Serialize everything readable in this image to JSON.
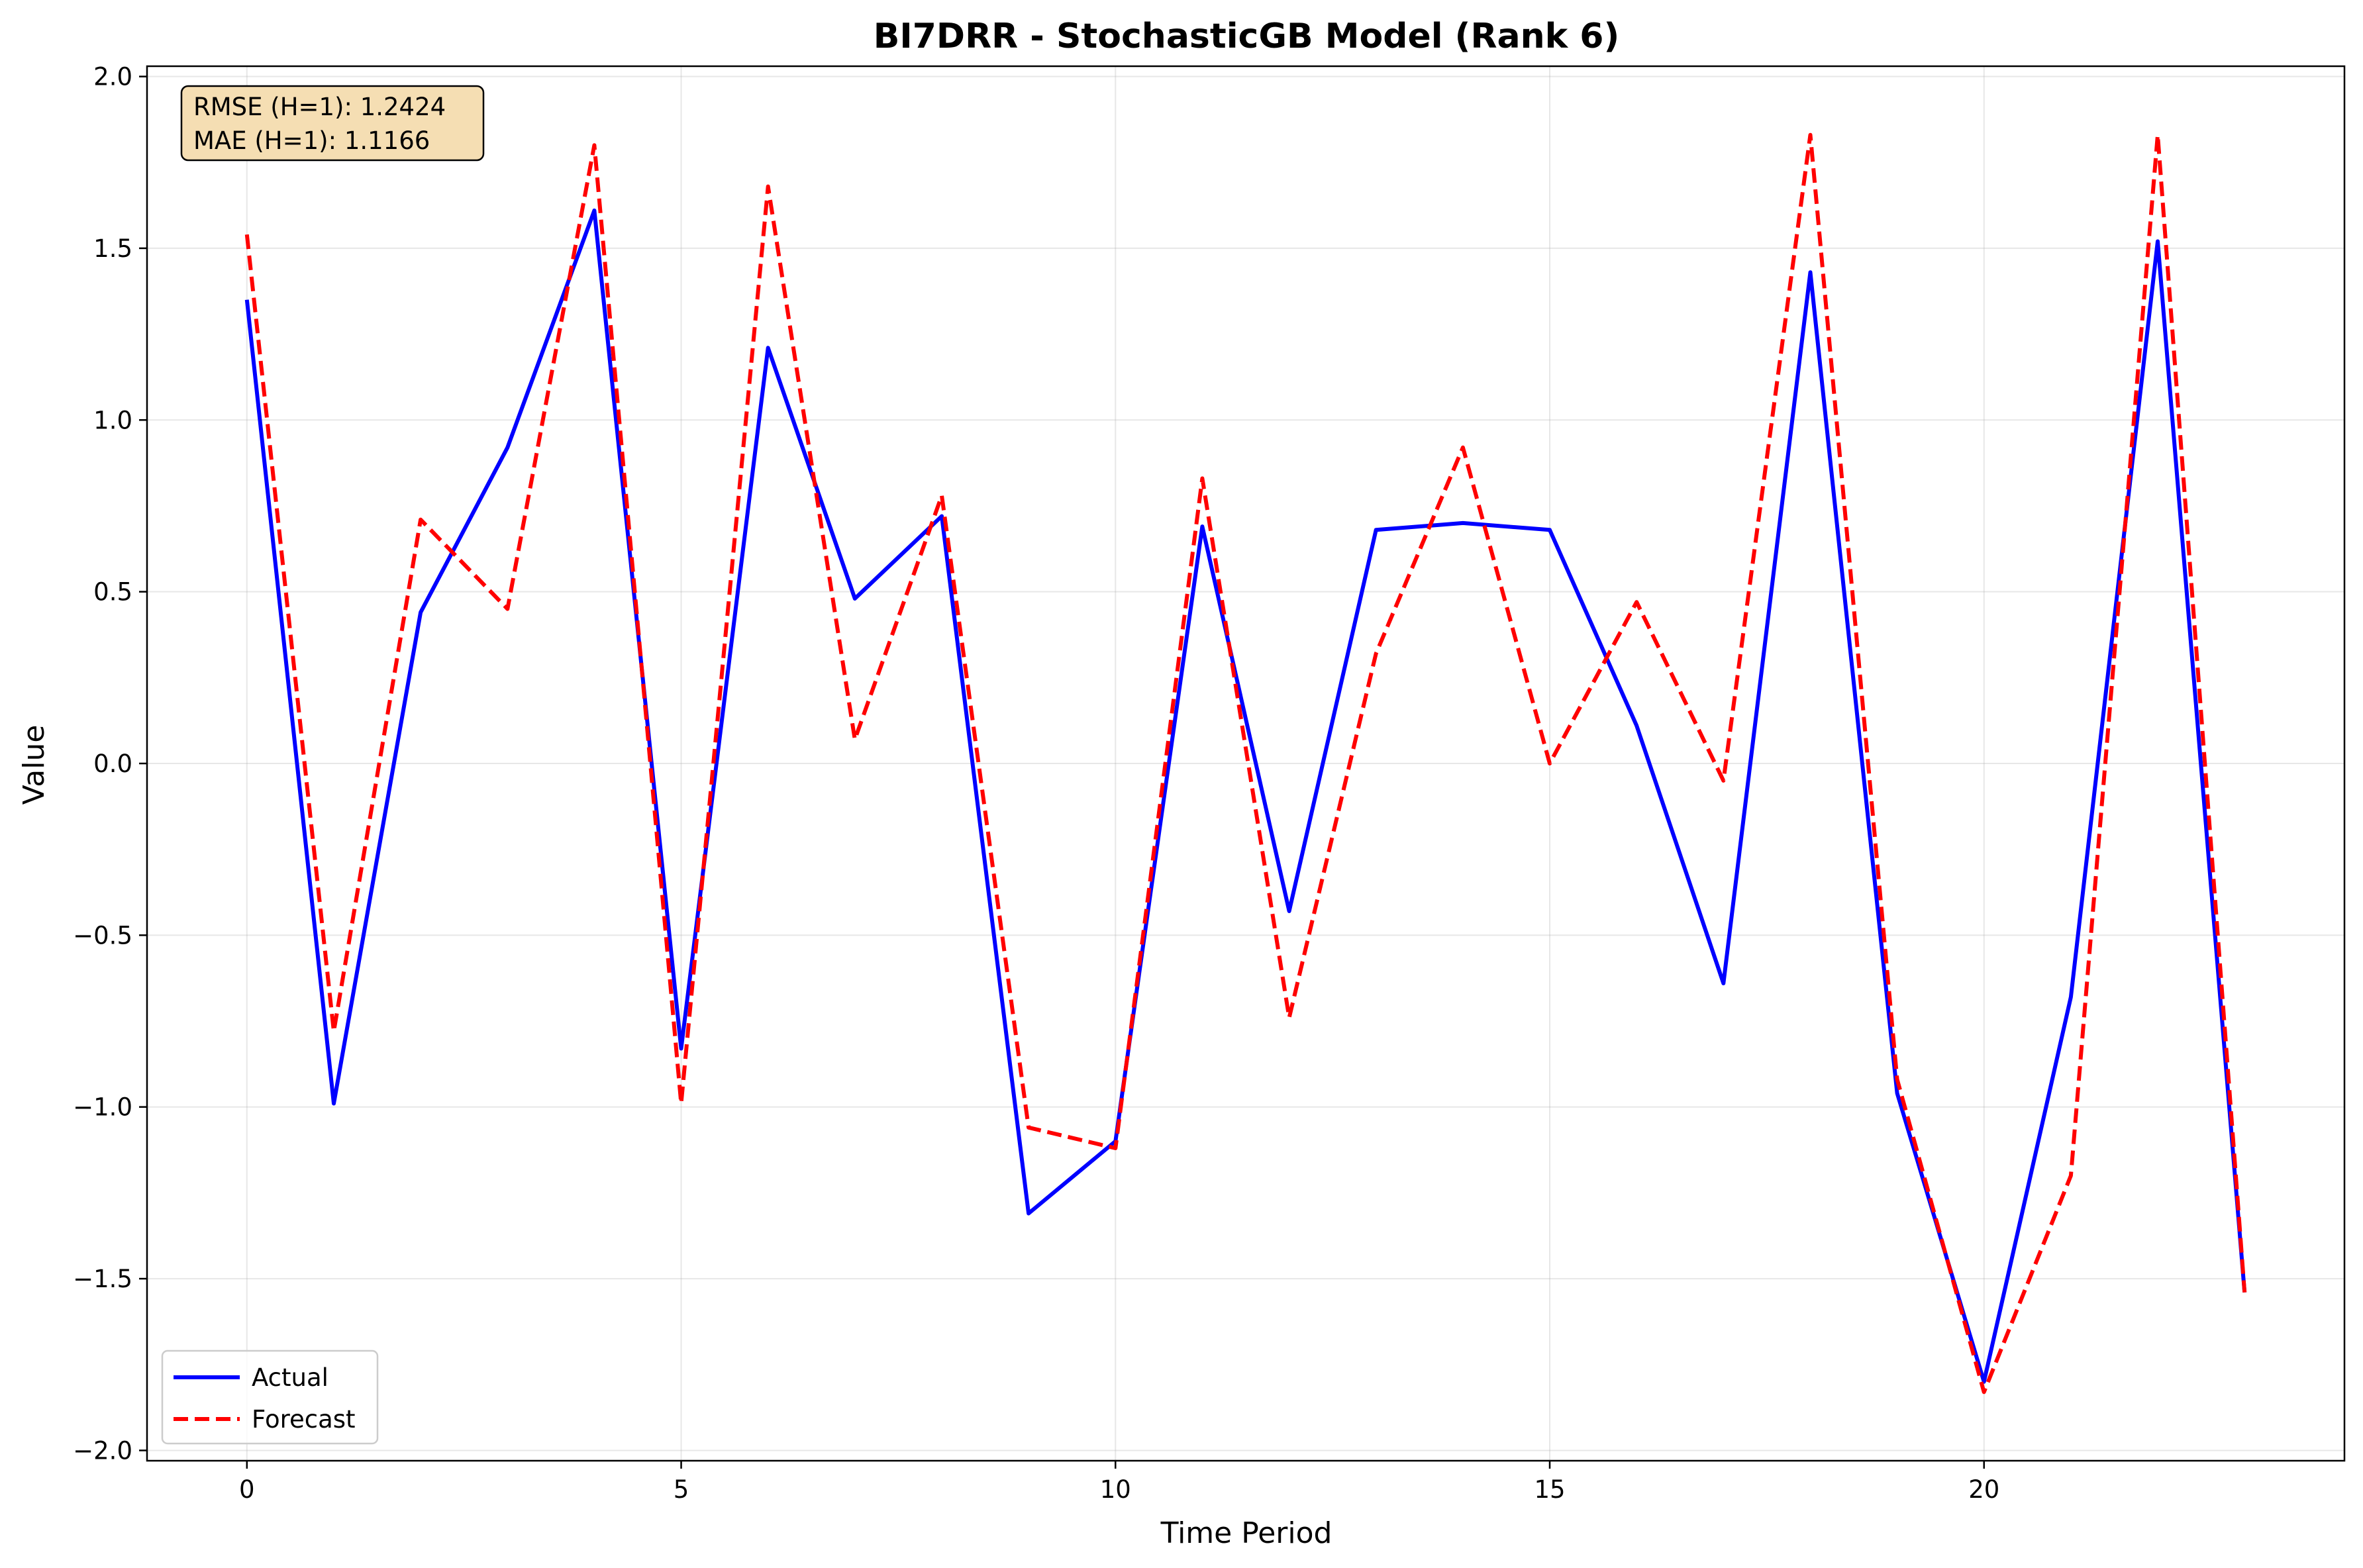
{
  "chart_data": {
    "type": "line",
    "title": "BI7DRR - StochasticGB Model (Rank 6)",
    "xlabel": "Time Period",
    "ylabel": "Value",
    "xlim": [
      -1.15,
      24.15
    ],
    "ylim": [
      -2.03,
      2.03
    ],
    "xticks": [
      0,
      5,
      10,
      15,
      20
    ],
    "yticks": [
      -2.0,
      -1.5,
      -1.0,
      -0.5,
      0.0,
      0.5,
      1.0,
      1.5,
      2.0
    ],
    "ytick_labels": [
      "−2.0",
      "−1.5",
      "−1.0",
      "−0.5",
      "0.0",
      "0.5",
      "1.0",
      "1.5",
      "2.0"
    ],
    "grid": true,
    "legend_position": "bottom-left",
    "annotation": {
      "lines": [
        "RMSE (H=1): 1.2424",
        "MAE (H=1): 1.1166"
      ],
      "background": "#f5deb3"
    },
    "x": [
      0,
      1,
      2,
      3,
      4,
      5,
      6,
      7,
      8,
      9,
      10,
      11,
      12,
      13,
      14,
      15,
      16,
      17,
      18,
      19,
      20,
      21,
      22,
      23
    ],
    "series": [
      {
        "name": "Actual",
        "color": "#0000ff",
        "style": "solid",
        "values": [
          1.35,
          -0.99,
          0.44,
          0.92,
          1.61,
          -0.83,
          1.21,
          0.48,
          0.72,
          -1.31,
          -1.1,
          0.69,
          -0.43,
          0.68,
          0.7,
          0.68,
          0.11,
          -0.64,
          1.43,
          -0.96,
          -1.8,
          -0.68,
          1.52,
          -1.54
        ]
      },
      {
        "name": "Forecast",
        "color": "#ff0000",
        "style": "dashed",
        "values": [
          1.54,
          -0.78,
          0.71,
          0.45,
          1.8,
          -0.99,
          1.68,
          0.07,
          0.78,
          -1.06,
          -1.12,
          0.83,
          -0.74,
          0.32,
          0.92,
          0.0,
          0.47,
          -0.05,
          1.83,
          -0.92,
          -1.83,
          -1.2,
          1.83,
          -1.54
        ]
      }
    ]
  }
}
